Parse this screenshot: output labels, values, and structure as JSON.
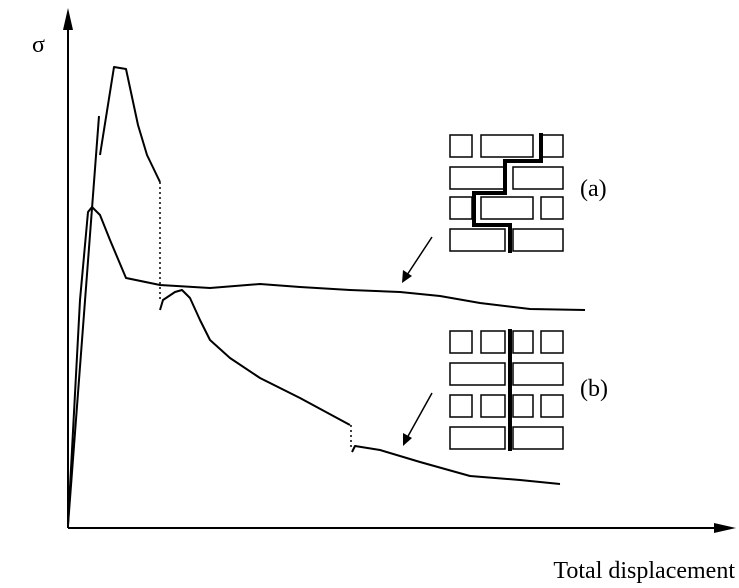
{
  "axes": {
    "y_label": "σ",
    "x_label": "Total displacement"
  },
  "labels": {
    "a": "(a)",
    "b": "(b)"
  }
}
